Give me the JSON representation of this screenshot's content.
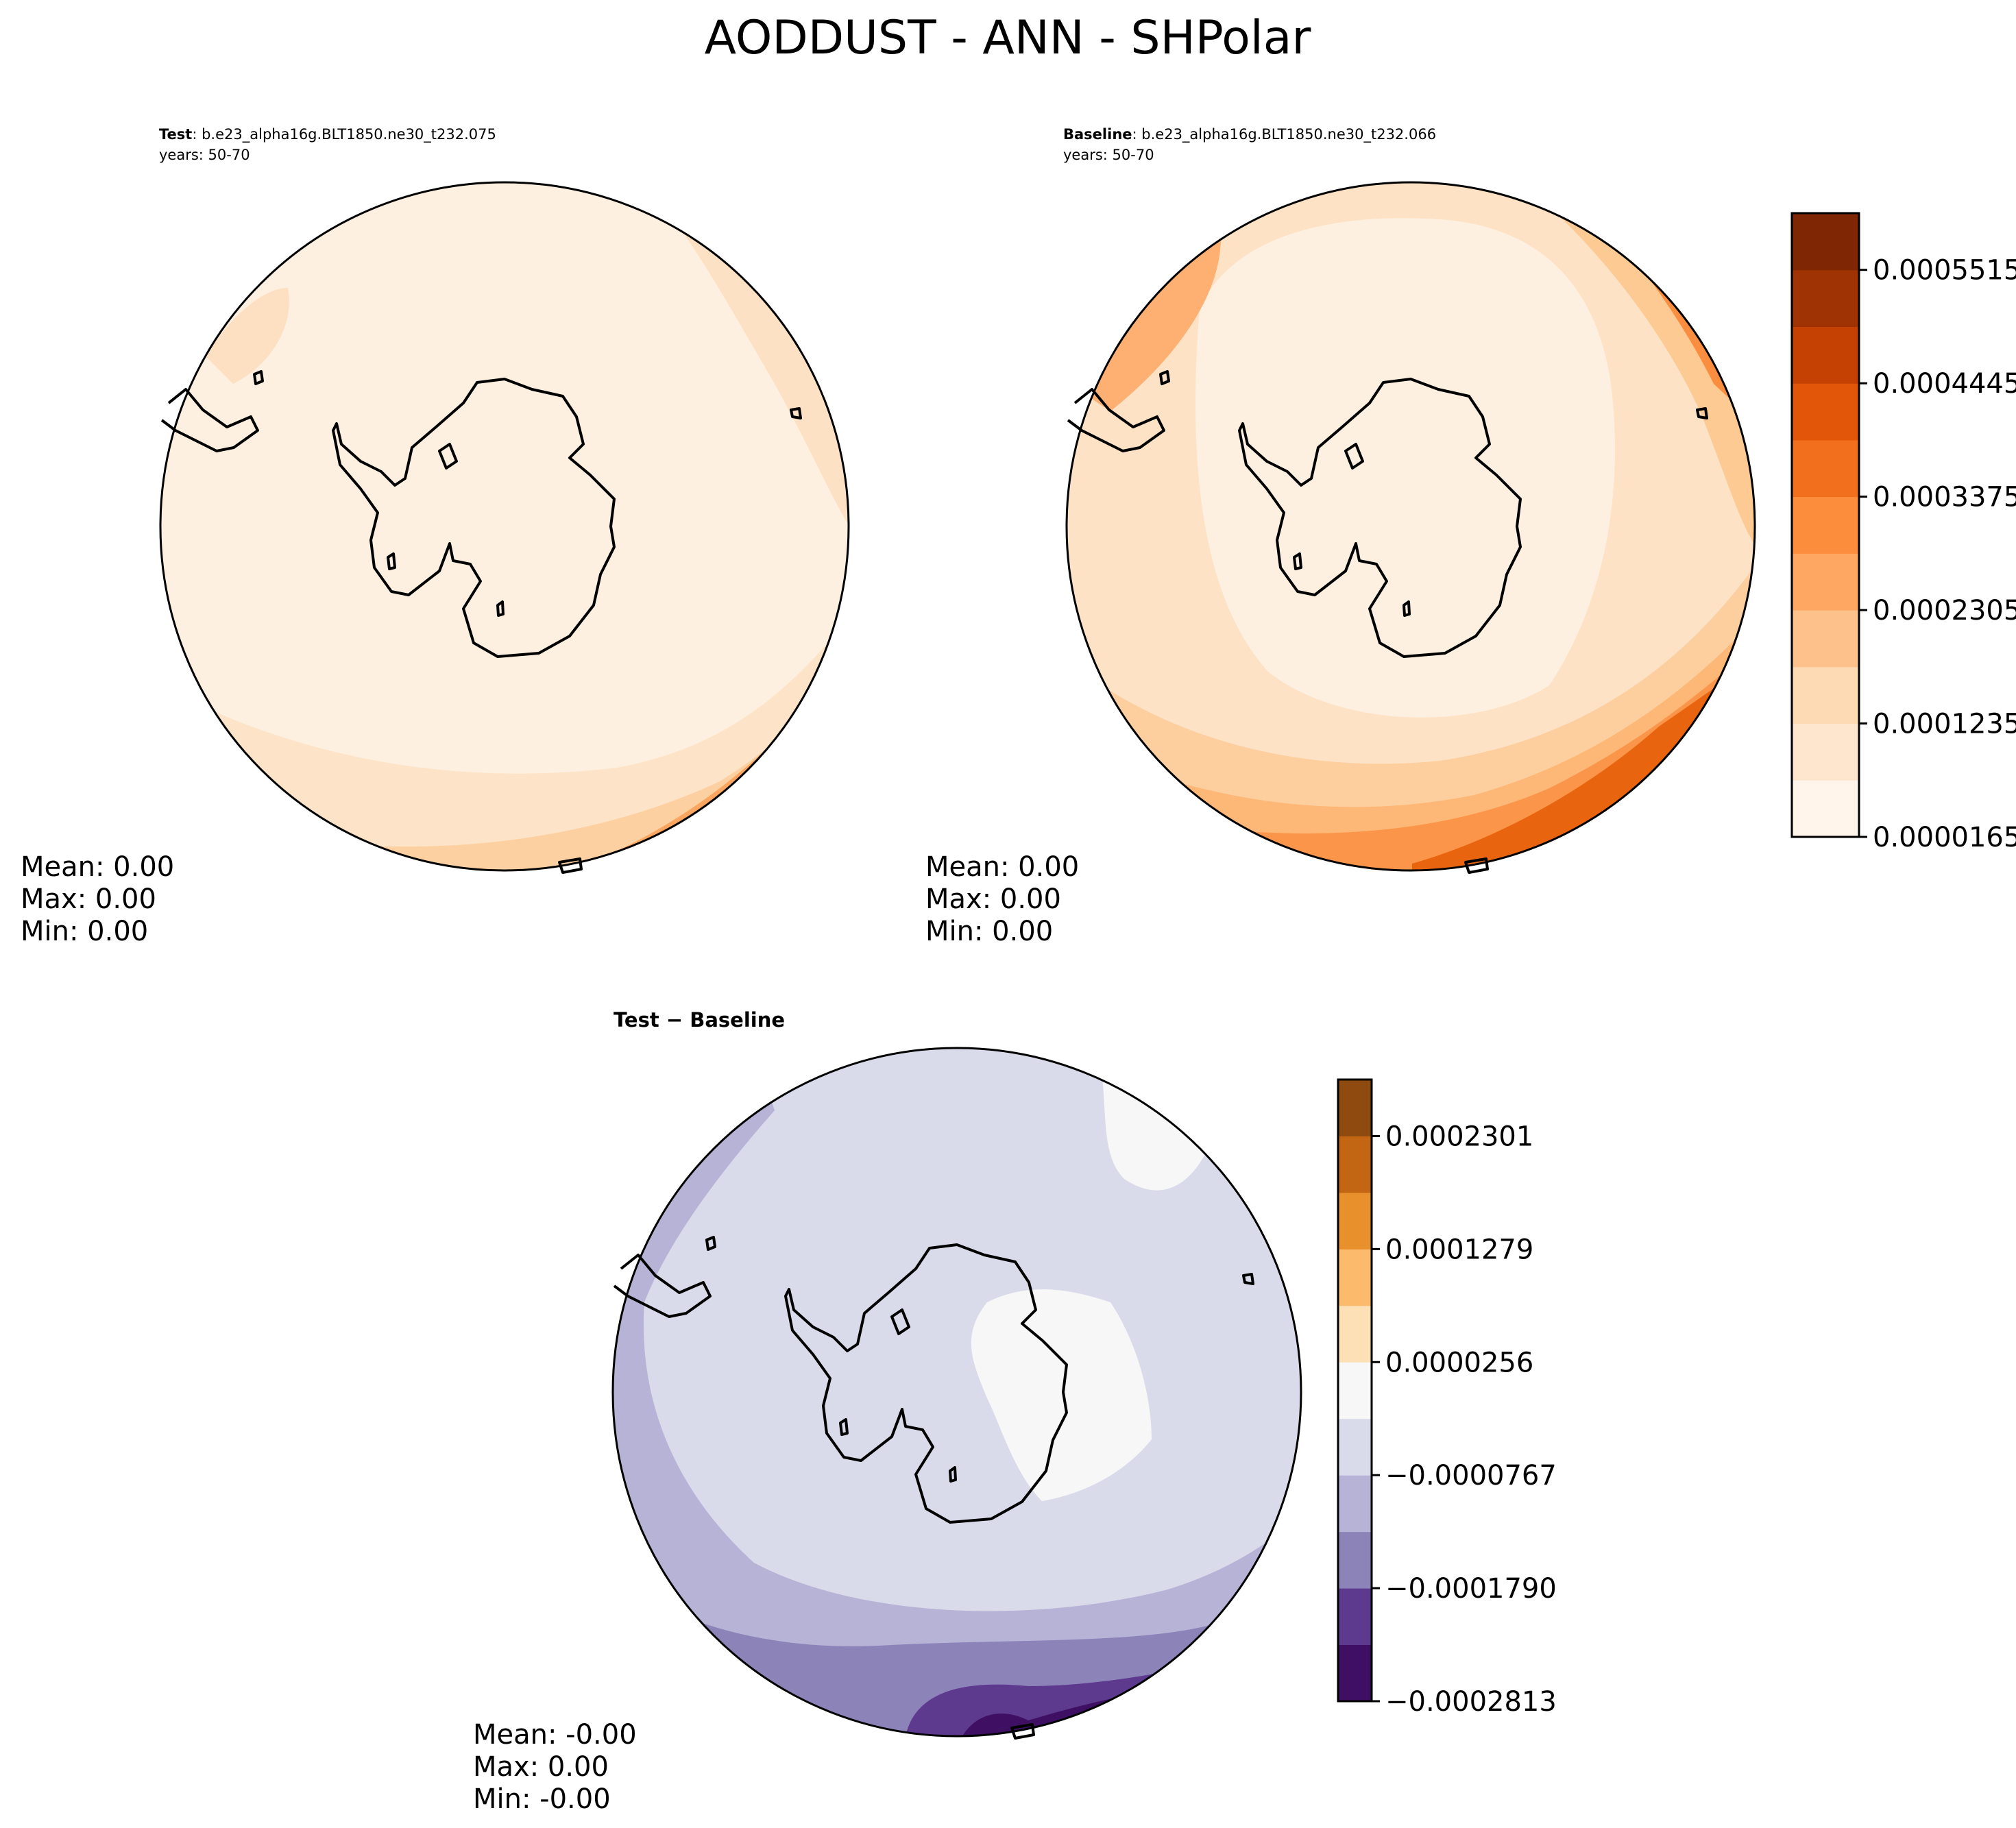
{
  "figure": {
    "title": "AODDUST - ANN - SHPolar"
  },
  "panels": {
    "test": {
      "label": "Test",
      "case": "b.e23_alpha16g.BLT1850.ne30_t232.075",
      "years": "years: 50-70",
      "stats": {
        "mean": "Mean:  0.00",
        "max": "Max:  0.00",
        "min": "Min:  0.00"
      }
    },
    "baseline": {
      "label": "Baseline",
      "case": "b.e23_alpha16g.BLT1850.ne30_t232.066",
      "years": "years: 50-70",
      "stats": {
        "mean": "Mean:  0.00",
        "max": "Max:  0.00",
        "min": "Min:  0.00"
      }
    },
    "diff": {
      "title_a": "Test",
      "title_sep": " − ",
      "title_b": "Baseline",
      "stats": {
        "mean": "Mean: -0.00",
        "max": "Max:  0.00",
        "min": "Min: -0.00"
      }
    }
  },
  "colorbars": {
    "main": {
      "ticks": [
        "0.0000165",
        "0.0001235",
        "0.0002305",
        "0.0003375",
        "0.0004445",
        "0.0005515"
      ],
      "colors": [
        "#fff5eb",
        "#fee6ce",
        "#fdd9b4",
        "#fdc28c",
        "#fda762",
        "#fb8d3d",
        "#f2701d",
        "#e25609",
        "#c44103",
        "#9f3303",
        "#7f2704"
      ]
    },
    "diff": {
      "ticks": [
        "−0.0002813",
        "−0.0001790",
        "−0.0000767",
        "0.0000256",
        "0.0001279",
        "0.0002301"
      ],
      "colors": [
        "#3f0f64",
        "#5d3a8e",
        "#8c83b9",
        "#b6b3d7",
        "#dadbea",
        "#f7f7f7",
        "#fde0b6",
        "#fbba6c",
        "#e8902c",
        "#c26613",
        "#8f4b0f"
      ]
    }
  }
}
